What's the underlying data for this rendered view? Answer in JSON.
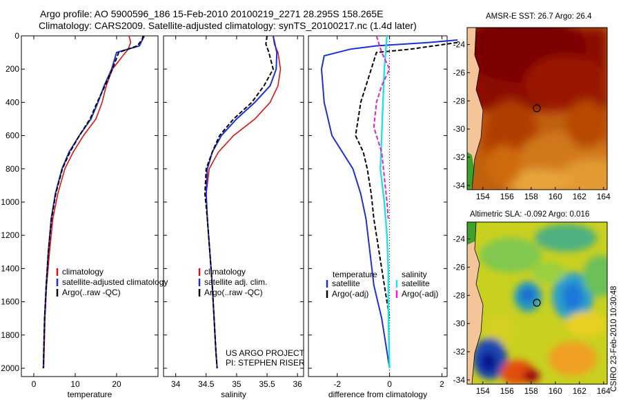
{
  "header": {
    "line1": "Argo profile: AO 5900596_186 15-Feb-2010 20100219_2271 28.295S 158.265E",
    "line2": "Climatology: CARS2009. Satellite-adjusted climatology: synTS_20100217.nc (1.4d later)"
  },
  "colors": {
    "climatology": "#e01010",
    "satellite": "#1a2fd6",
    "argo": "#000000",
    "salinity_sat": "#22e0e8",
    "salinity_argo": "#e020d0"
  },
  "chart_data": [
    {
      "type": "line",
      "id": "temperature",
      "xlabel": "temperature",
      "ylabel": "",
      "xlim": [
        -3,
        30
      ],
      "ylim": [
        0,
        2050
      ],
      "xticks": [
        0,
        10,
        20
      ],
      "yticks": [
        0,
        200,
        400,
        600,
        800,
        1000,
        1200,
        1400,
        1600,
        1800,
        2000
      ],
      "legend": [
        "climatology",
        "satellite-adjusted climatology",
        "Argo(..raw -QC)"
      ],
      "series": [
        {
          "name": "climatology",
          "style": "red",
          "x": [
            23.0,
            23.4,
            22.8,
            21.5,
            19.0,
            17.5,
            16.5,
            15.0,
            12.0,
            9.5,
            7.5,
            5.8,
            4.6,
            3.8,
            3.1,
            2.7,
            2.5,
            2.4
          ],
          "y": [
            0,
            40,
            80,
            120,
            200,
            300,
            400,
            500,
            600,
            700,
            800,
            950,
            1100,
            1300,
            1500,
            1700,
            1900,
            2000
          ]
        },
        {
          "name": "satellite",
          "style": "blue",
          "x": [
            26.7,
            26.3,
            25.5,
            20.0,
            18.8,
            17.0,
            15.5,
            13.8,
            11.0,
            8.5,
            6.8,
            5.2,
            4.2,
            3.5,
            3.0,
            2.6,
            2.4,
            2.3
          ],
          "y": [
            0,
            20,
            60,
            100,
            200,
            300,
            400,
            500,
            600,
            700,
            800,
            950,
            1100,
            1300,
            1500,
            1700,
            1900,
            2000
          ]
        },
        {
          "name": "argo",
          "style": "black-dash",
          "x": [
            26.4,
            26.2,
            25.0,
            20.5,
            19.0,
            17.2,
            15.3,
            13.6,
            11.0,
            8.7,
            6.9,
            5.3,
            4.3,
            3.5,
            3.0,
            2.6,
            2.4,
            2.3
          ],
          "y": [
            0,
            20,
            60,
            100,
            200,
            300,
            400,
            500,
            600,
            700,
            800,
            950,
            1100,
            1300,
            1500,
            1700,
            1900,
            2000
          ]
        }
      ]
    },
    {
      "type": "line",
      "id": "salinity",
      "xlabel": "salinity",
      "xlim": [
        33.8,
        36.1
      ],
      "ylim": [
        0,
        2050
      ],
      "xticks": [
        34,
        34.5,
        35,
        35.5,
        36
      ],
      "legend": [
        "climatology",
        "satellite adj. clim.",
        "Argo(..raw -QC)"
      ],
      "series": [
        {
          "name": "climatology",
          "style": "red",
          "x": [
            35.6,
            35.62,
            35.68,
            35.72,
            35.68,
            35.55,
            35.3,
            34.95,
            34.7,
            34.55,
            34.5,
            34.52,
            34.56,
            34.6,
            34.63,
            34.66,
            34.68
          ],
          "y": [
            0,
            50,
            100,
            200,
            300,
            400,
            500,
            600,
            700,
            800,
            950,
            1100,
            1300,
            1500,
            1700,
            1900,
            2000
          ]
        },
        {
          "name": "satellite",
          "style": "blue",
          "x": [
            35.6,
            35.63,
            35.66,
            35.65,
            35.55,
            35.3,
            35.0,
            34.75,
            34.6,
            34.52,
            34.5,
            34.52,
            34.56,
            34.6,
            34.63,
            34.66,
            34.68
          ],
          "y": [
            0,
            50,
            100,
            200,
            300,
            400,
            500,
            600,
            700,
            800,
            950,
            1100,
            1300,
            1500,
            1700,
            1900,
            2000
          ]
        },
        {
          "name": "argo",
          "style": "black-dash",
          "x": [
            35.5,
            35.48,
            35.53,
            35.6,
            35.45,
            35.25,
            34.95,
            34.72,
            34.6,
            34.5,
            34.48,
            34.52,
            34.56,
            34.6,
            34.63,
            34.66,
            34.68
          ],
          "y": [
            0,
            50,
            100,
            200,
            300,
            400,
            500,
            600,
            700,
            800,
            950,
            1100,
            1300,
            1500,
            1700,
            1900,
            2000
          ]
        }
      ],
      "annotation": [
        "US ARGO PROJECT",
        "PI: STEPHEN RISER"
      ]
    },
    {
      "type": "line",
      "id": "difference",
      "xlabel": "difference from climatology",
      "xlim": [
        -3.1,
        2.2
      ],
      "ylim": [
        0,
        2050
      ],
      "xticks": [
        -2,
        0,
        2
      ],
      "legend_headers": [
        "temperature",
        "salinity"
      ],
      "legend": [
        "satellite",
        "Argo(-adj)",
        "satellite",
        "Argo(-adj)"
      ],
      "series": [
        {
          "name": "temperature satellite",
          "style": "blue",
          "x": [
            2.6,
            1.5,
            -0.5,
            -1.5,
            -2.5,
            -2.6,
            -2.5,
            -2.2,
            -1.8,
            -1.4,
            -1.1,
            -0.9,
            -0.75,
            -0.6,
            -0.3,
            -0.1,
            0.0
          ],
          "y": [
            25,
            40,
            60,
            80,
            120,
            200,
            400,
            600,
            700,
            800,
            950,
            1100,
            1300,
            1500,
            1700,
            1900,
            2000
          ]
        },
        {
          "name": "temperature argo",
          "style": "black-dash",
          "x": [
            2.6,
            0.8,
            -0.5,
            -0.6,
            -0.7,
            -0.9,
            -1.1,
            -1.2,
            -1.3,
            -1.0,
            -0.85,
            -0.7,
            -0.6,
            -0.4,
            -0.2,
            0.0
          ],
          "y": [
            40,
            80,
            100,
            150,
            200,
            300,
            400,
            500,
            600,
            700,
            800,
            950,
            1100,
            1300,
            1500,
            1700
          ]
        },
        {
          "name": "salinity satellite",
          "style": "cyan",
          "x": [
            -0.1,
            -0.15,
            -0.2,
            -0.25,
            -0.3,
            -0.35,
            -0.2,
            -0.1,
            -0.05,
            -0.05,
            -0.03,
            0.0
          ],
          "y": [
            0,
            100,
            200,
            400,
            600,
            800,
            1000,
            1200,
            1400,
            1600,
            1800,
            2000
          ]
        },
        {
          "name": "salinity argo",
          "style": "magenta-dash",
          "x": [
            -0.5,
            -0.3,
            0.0,
            -0.3,
            -0.5,
            -0.6,
            -0.3,
            -0.2,
            -0.1,
            -0.05
          ],
          "y": [
            0,
            100,
            200,
            300,
            400,
            550,
            700,
            850,
            1000,
            1100
          ]
        }
      ]
    },
    {
      "type": "heatmap",
      "id": "sst-map",
      "title": "AMSR-E SST: 26.7 Argo: 26.4",
      "xlim": [
        152.7,
        164.3
      ],
      "ylim": [
        -34.3,
        -22.8
      ],
      "xticks": [
        154,
        156,
        158,
        160,
        162,
        164
      ],
      "yticks": [
        -24,
        -26,
        -28,
        -30,
        -32,
        -34
      ],
      "marker": [
        158.265,
        -28.295
      ]
    },
    {
      "type": "heatmap",
      "id": "sla-map",
      "title": "Altimetric SLA: -0.092 Argo: 0.016",
      "xlim": [
        152.7,
        164.3
      ],
      "ylim": [
        -34.3,
        -22.8
      ],
      "xticks": [
        154,
        156,
        158,
        160,
        162,
        164
      ],
      "yticks": [
        -24,
        -26,
        -28,
        -30,
        -32,
        -34
      ],
      "marker": [
        158.265,
        -28.295
      ]
    }
  ],
  "credit": "CSIRO 23-Feb-2010 10:30:48"
}
